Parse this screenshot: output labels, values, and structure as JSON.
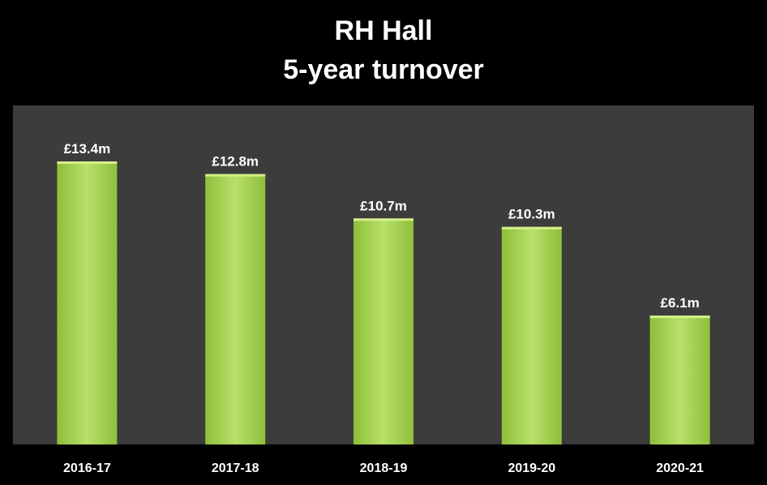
{
  "title": "RH Hall",
  "subtitle": "5-year turnover",
  "colors": {
    "background": "#000000",
    "plot_area": "#3c3c3c",
    "bar_light": "#b8e06a",
    "bar_dark": "#8fbf3a",
    "text": "#ffffff"
  },
  "chart_data": {
    "type": "bar",
    "title": "RH Hall",
    "subtitle": "5-year turnover",
    "categories": [
      "2016-17",
      "2017-18",
      "2018-19",
      "2019-20",
      "2020-21"
    ],
    "values": [
      13.4,
      12.8,
      10.7,
      10.3,
      6.1
    ],
    "data_labels": [
      "£13.4m",
      "£12.8m",
      "£10.7m",
      "£10.3m",
      "£6.1m"
    ],
    "unit": "£m",
    "xlabel": "",
    "ylabel": "",
    "ylim": [
      0,
      15
    ],
    "grid": false,
    "legend": "none"
  }
}
